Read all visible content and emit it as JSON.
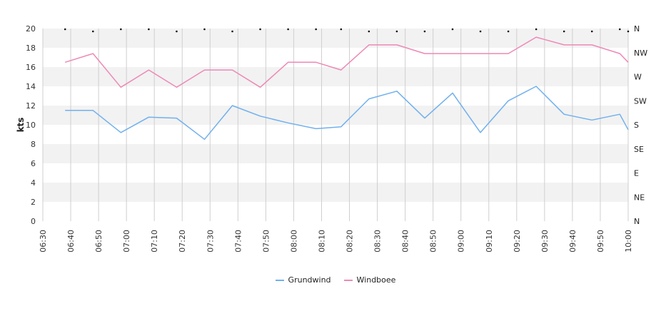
{
  "chart_data": {
    "type": "line",
    "title": "",
    "xlabel": "",
    "ylabel": "kts",
    "ylim": [
      0,
      20
    ],
    "y_ticks": [
      "0",
      "2",
      "4",
      "6",
      "8",
      "10",
      "12",
      "14",
      "16",
      "18",
      "20"
    ],
    "x_ticks": [
      "06:30",
      "06:40",
      "06:50",
      "07:00",
      "07:10",
      "07:20",
      "07:30",
      "07:40",
      "07:50",
      "08:00",
      "08:10",
      "08:20",
      "08:30",
      "08:40",
      "08:50",
      "09:00",
      "09:10",
      "09:20",
      "09:30",
      "09:40",
      "09:50",
      "10:00"
    ],
    "x_range": [
      "06:30",
      "10:00"
    ],
    "right_axis_labels": [
      "N",
      "NE",
      "E",
      "SE",
      "S",
      "SW",
      "W",
      "NW",
      "N"
    ],
    "grid": true,
    "legend_position": "bottom",
    "series": [
      {
        "name": "Grundwind",
        "color": "#70b0ee",
        "points": [
          [
            "06:38",
            11.5
          ],
          [
            "06:48",
            11.5
          ],
          [
            "06:58",
            9.2
          ],
          [
            "07:08",
            10.8
          ],
          [
            "07:18",
            10.7
          ],
          [
            "07:28",
            8.5
          ],
          [
            "07:38",
            12.0
          ],
          [
            "07:48",
            10.9
          ],
          [
            "07:58",
            10.2
          ],
          [
            "08:08",
            9.6
          ],
          [
            "08:17",
            9.8
          ],
          [
            "08:27",
            12.7
          ],
          [
            "08:37",
            13.5
          ],
          [
            "08:47",
            10.7
          ],
          [
            "08:57",
            13.3
          ],
          [
            "09:07",
            9.2
          ],
          [
            "09:17",
            12.5
          ],
          [
            "09:27",
            14.0
          ],
          [
            "09:37",
            11.1
          ],
          [
            "09:47",
            10.5
          ],
          [
            "09:57",
            11.1
          ],
          [
            "10:00",
            9.5
          ]
        ]
      },
      {
        "name": "Windboee",
        "color": "#ee88b6",
        "points": [
          [
            "06:38",
            16.5
          ],
          [
            "06:48",
            17.4
          ],
          [
            "06:58",
            13.9
          ],
          [
            "07:08",
            15.7
          ],
          [
            "07:18",
            13.9
          ],
          [
            "07:28",
            15.7
          ],
          [
            "07:38",
            15.7
          ],
          [
            "07:48",
            13.9
          ],
          [
            "07:58",
            16.5
          ],
          [
            "08:08",
            16.5
          ],
          [
            "08:17",
            15.7
          ],
          [
            "08:27",
            18.3
          ],
          [
            "08:37",
            18.3
          ],
          [
            "08:47",
            17.4
          ],
          [
            "08:57",
            17.4
          ],
          [
            "09:07",
            17.4
          ],
          [
            "09:17",
            17.4
          ],
          [
            "09:27",
            19.1
          ],
          [
            "09:37",
            18.3
          ],
          [
            "09:47",
            18.3
          ],
          [
            "09:57",
            17.4
          ],
          [
            "10:00",
            16.5
          ]
        ]
      }
    ],
    "direction_markers": [
      {
        "time": "06:38",
        "dir": 18
      },
      {
        "time": "06:48",
        "dir": 0
      },
      {
        "time": "06:58",
        "dir": 18
      },
      {
        "time": "07:08",
        "dir": 18
      },
      {
        "time": "07:18",
        "dir": 0
      },
      {
        "time": "07:28",
        "dir": 18
      },
      {
        "time": "07:38",
        "dir": 0
      },
      {
        "time": "07:48",
        "dir": 18
      },
      {
        "time": "07:58",
        "dir": 18
      },
      {
        "time": "08:08",
        "dir": 18
      },
      {
        "time": "08:17",
        "dir": 18
      },
      {
        "time": "08:27",
        "dir": 0
      },
      {
        "time": "08:37",
        "dir": 0
      },
      {
        "time": "08:47",
        "dir": 0
      },
      {
        "time": "08:57",
        "dir": 18
      },
      {
        "time": "09:07",
        "dir": 0
      },
      {
        "time": "09:17",
        "dir": 0
      },
      {
        "time": "09:27",
        "dir": 18
      },
      {
        "time": "09:37",
        "dir": 0
      },
      {
        "time": "09:47",
        "dir": 0
      },
      {
        "time": "09:57",
        "dir": 18
      },
      {
        "time": "10:00",
        "dir": 0
      }
    ]
  }
}
